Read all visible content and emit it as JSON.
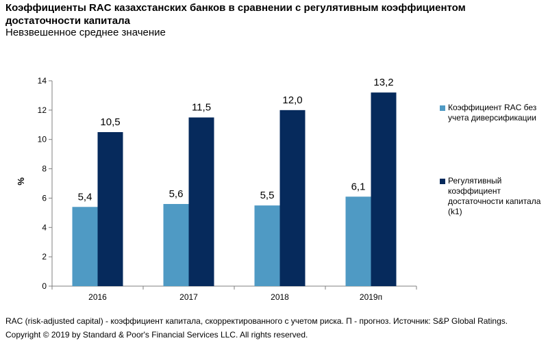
{
  "title": "Коэффициенты RAC казахстанских банков в сравнении с регулятивным коэффициентом достаточности капитала",
  "subtitle": "Невзвешенное среднее значение",
  "footnote": "RAC (risk-adjusted capital) - коэффициент капитала, скорректированного с учетом риска. П - прогноз. Источник: S&P Global Ratings.",
  "copyright": "Copyright © 2019 by Standard & Poor's Financial Services LLC. All rights reserved.",
  "colors": {
    "series1": "#4F9AC4",
    "series2": "#062A5C",
    "axis": "#7F7F7F"
  },
  "chart_data": {
    "type": "bar",
    "categories": [
      "2016",
      "2017",
      "2018",
      "2019п"
    ],
    "series": [
      {
        "name": "Коэффициент RAC без учета диверсификации",
        "values": [
          5.4,
          5.6,
          5.5,
          6.1
        ],
        "labels": [
          "5,4",
          "5,6",
          "5,5",
          "6,1"
        ]
      },
      {
        "name": "Регулятивный коэффициент достаточности капитала (k1)",
        "values": [
          10.5,
          11.5,
          12.0,
          13.2
        ],
        "labels": [
          "10,5",
          "11,5",
          "12,0",
          "13,2"
        ]
      }
    ],
    "ylabel": "%",
    "ylim": [
      0,
      14
    ],
    "yticks": [
      "0",
      "2",
      "4",
      "6",
      "8",
      "10",
      "12",
      "14"
    ],
    "grid": false,
    "legend": "right"
  }
}
